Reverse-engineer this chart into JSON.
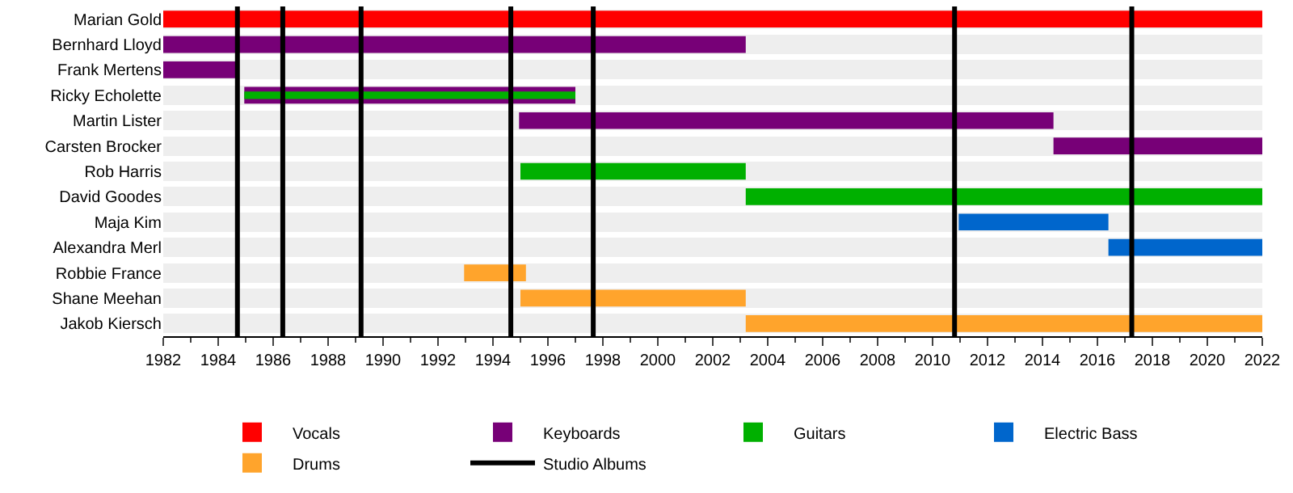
{
  "chart_data": {
    "type": "bar",
    "orientation": "horizontal",
    "grid": "y",
    "legend": "bottom",
    "categories": [
      "Marian Gold",
      "Bernhard Lloyd",
      "Frank Mertens",
      "Ricky Echolette",
      "Martin Lister",
      "Carsten Brocker",
      "Rob Harris",
      "David Goodes",
      "Maja Kim",
      "Alexandra Merl",
      "Robbie France",
      "Shane Meehan",
      "Jakob Kiersch"
    ],
    "xlim": [
      1982,
      2022
    ],
    "xticks": [
      1982,
      1984,
      1986,
      1988,
      1990,
      1992,
      1994,
      1996,
      1998,
      2000,
      2002,
      2004,
      2006,
      2008,
      2010,
      2012,
      2014,
      2016,
      2018,
      2020,
      2022
    ],
    "series": [
      {
        "name": "Vocals",
        "color": "#ff0000",
        "base": [
          1982,
          null,
          null,
          null,
          null,
          null,
          null,
          null,
          null,
          null,
          null,
          null,
          null
        ],
        "values": [
          40,
          null,
          null,
          null,
          null,
          null,
          null,
          null,
          null,
          null,
          null,
          null,
          null
        ]
      },
      {
        "name": "Keyboards",
        "color": "#770077",
        "base": [
          null,
          1982,
          1982,
          1984.95,
          1994.95,
          2014.4,
          null,
          null,
          null,
          null,
          null,
          null,
          null
        ],
        "values": [
          null,
          21.2,
          2.7,
          12.05,
          19.45,
          7.6,
          null,
          null,
          null,
          null,
          null,
          null,
          null
        ]
      },
      {
        "name": "Guitars",
        "color": "#00b000",
        "base": [
          null,
          null,
          null,
          1984.95,
          null,
          null,
          1995,
          2003.2,
          null,
          null,
          null,
          null,
          null
        ],
        "values": [
          null,
          null,
          null,
          12.05,
          null,
          null,
          8.2,
          18.8,
          null,
          null,
          null,
          null,
          null
        ]
      },
      {
        "name": "Electric Bass",
        "color": "#0066cc",
        "base": [
          null,
          null,
          null,
          null,
          null,
          null,
          null,
          null,
          2010.95,
          2016.4,
          null,
          null,
          null
        ],
        "values": [
          null,
          null,
          null,
          null,
          null,
          null,
          null,
          null,
          5.45,
          5.6,
          null,
          null,
          null
        ]
      },
      {
        "name": "Drums",
        "color": "#ffa42c",
        "base": [
          null,
          null,
          null,
          null,
          null,
          null,
          null,
          null,
          null,
          null,
          1992.95,
          1995,
          2003.2
        ],
        "values": [
          null,
          null,
          null,
          null,
          null,
          null,
          null,
          null,
          null,
          null,
          2.25,
          8.2,
          18.8
        ]
      }
    ],
    "ref_lines": [
      {
        "axis": "x",
        "value": 1984.7,
        "label": "Studio Albums",
        "color": "#000000"
      },
      {
        "axis": "x",
        "value": 1986.35,
        "color": "#000000"
      },
      {
        "axis": "x",
        "value": 1989.2,
        "color": "#000000"
      },
      {
        "axis": "x",
        "value": 1994.65,
        "color": "#000000"
      },
      {
        "axis": "x",
        "value": 1997.65,
        "color": "#000000"
      },
      {
        "axis": "x",
        "value": 2010.8,
        "color": "#000000"
      },
      {
        "axis": "x",
        "value": 2017.25,
        "color": "#000000"
      }
    ]
  }
}
